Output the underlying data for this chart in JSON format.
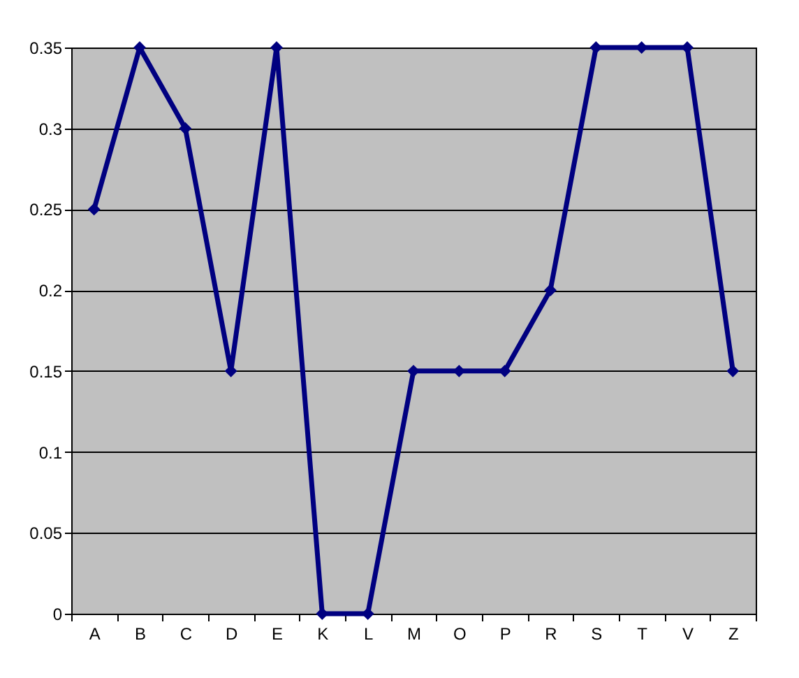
{
  "chart_data": {
    "type": "line",
    "categories": [
      "A",
      "B",
      "C",
      "D",
      "E",
      "K",
      "L",
      "M",
      "O",
      "P",
      "R",
      "S",
      "T",
      "V",
      "Z"
    ],
    "series": [
      {
        "color": "#000080",
        "values": [
          0.25,
          0.35,
          0.3,
          0.15,
          0.35,
          0,
          0,
          0.15,
          0.15,
          0.15,
          0.2,
          0.35,
          0.35,
          0.35,
          0.15
        ]
      }
    ],
    "ylim": [
      0,
      0.35
    ],
    "yticks": [
      0,
      0.05,
      0.1,
      0.15,
      0.2,
      0.25,
      0.3,
      0.35
    ],
    "grid": "y",
    "marker": "diamond",
    "line_style": "solid"
  }
}
